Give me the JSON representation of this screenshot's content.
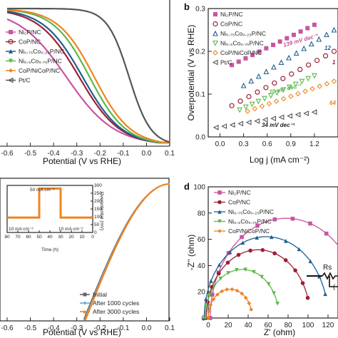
{
  "colors": {
    "Ni2P/NC": "#c8559f",
    "CoP/NC": "#9e1f35",
    "Ni0.75Co0.25P/NC": "#1e5f91",
    "Ni0.5Co0.75P/NC": "#5cb84a",
    "CoP/NiCoP/NC": "#ef8420",
    "Pt/C": "#555555",
    "Initial": "#666666",
    "After 1000 cycles": "#6fa8d4",
    "After 3000 cycles": "#ef8420"
  },
  "chart_data": [
    {
      "id": "a",
      "type": "line",
      "xlabel": "Potential (V vs RHE)",
      "xlim": [
        -0.6,
        0.1
      ],
      "xticks": [
        "-0.6",
        "-0.5",
        "-0.4",
        "-0.3",
        "-0.2",
        "-0.1",
        "0.0",
        "0.1"
      ],
      "legend": "top-left",
      "series": [
        {
          "name": "Ni2P/NC",
          "onset": -0.18,
          "half": -0.345
        },
        {
          "name": "CoP/NC",
          "onset": -0.15,
          "half": -0.29
        },
        {
          "name": "Ni0.75Co0.25P/NC",
          "onset": -0.14,
          "half": -0.275
        },
        {
          "name": "Ni0.5Co0.75P/NC",
          "onset": -0.12,
          "half": -0.245
        },
        {
          "name": "CoP/NiCoP/NC",
          "onset": -0.1,
          "half": -0.225
        },
        {
          "name": "Pt/C",
          "onset": 0.0,
          "half": -0.075
        }
      ]
    },
    {
      "id": "b",
      "type": "line",
      "xlabel": "Log j (mA cm⁻²)",
      "ylabel": "Overpotential (V vs RHE)",
      "xlim": [
        -0.15,
        1.5
      ],
      "ylim": [
        0.0,
        0.3
      ],
      "xticks": [
        "0.0",
        "0.3",
        "0.6",
        "0.9",
        "1.2"
      ],
      "yticks": [
        "0.0",
        "0.1",
        "0.2",
        "0.3"
      ],
      "legend": "top-left",
      "series": [
        {
          "name": "Ni2P/NC",
          "x": [
            0.15,
            1.2
          ],
          "y": [
            0.168,
            0.262
          ],
          "slope_label": "139 mV dec⁻¹"
        },
        {
          "name": "CoP/NC",
          "x": [
            0.15,
            1.45
          ],
          "y": [
            0.073,
            0.2
          ],
          "slope_label": "1"
        },
        {
          "name": "Ni0.75Co0.25P/NC",
          "x": [
            0.3,
            1.45
          ],
          "y": [
            0.12,
            0.25
          ],
          "slope_label": "12"
        },
        {
          "name": "Ni0.5Co0.75P/NC",
          "x": [
            0.25,
            1.2
          ],
          "y": [
            0.063,
            0.143
          ],
          "slope_label": "70 mV dec⁻¹"
        },
        {
          "name": "CoP/NiCoP/NC",
          "x": [
            0.35,
            1.45
          ],
          "y": [
            0.06,
            0.13
          ],
          "slope_label": "64"
        },
        {
          "name": "Pt/C",
          "x": [
            -0.05,
            1.2
          ],
          "y": [
            0.022,
            0.058
          ],
          "slope_label": "34 mV dec⁻¹"
        }
      ]
    },
    {
      "id": "c",
      "type": "line",
      "xlabel": "Potential (V vs RHE)",
      "xlim": [
        -0.6,
        0.1
      ],
      "xticks": [
        "-0.6",
        "-0.5",
        "-0.4",
        "-0.3",
        "-0.2",
        "-0.1",
        "0.0",
        "0.1"
      ],
      "legend": "bottom-right",
      "series": [
        {
          "name": "Initial"
        },
        {
          "name": "After 1000 cycles"
        },
        {
          "name": "After 3000 cycles"
        }
      ],
      "inset": {
        "xlabel": "Time (h)",
        "ylabel": "Overpotential (mV)",
        "xticks": [
          "80",
          "70",
          "60",
          "50",
          "40",
          "30",
          "20",
          "10",
          "0"
        ],
        "yticks": [
          "0",
          "50",
          "100",
          "150",
          "200",
          "250",
          "300"
        ],
        "labels": [
          "50 mA cm⁻²",
          "10 mA cm⁻²",
          "10 mA cm⁻²"
        ],
        "segments": [
          {
            "t0": 80,
            "t1": 50,
            "eta": 95
          },
          {
            "t0": 50,
            "t1": 30,
            "eta": 280
          },
          {
            "t0": 30,
            "t1": 0,
            "eta": 95
          }
        ]
      }
    },
    {
      "id": "d",
      "type": "scatter",
      "xlabel": "Z' (ohm)",
      "ylabel": "-Z'' (ohm)",
      "xlim": [
        0,
        130
      ],
      "ylim": [
        0,
        100
      ],
      "xticks": [
        "0",
        "20",
        "40",
        "60",
        "80",
        "100",
        "120"
      ],
      "yticks": [
        "0",
        "20",
        "40",
        "60",
        "80",
        "100"
      ],
      "legend": "top-left",
      "circuit_label": "Rs",
      "series": [
        {
          "name": "Ni2P/NC",
          "cx": 78,
          "r": 76
        },
        {
          "name": "Ni0.75Co0.25P/NC",
          "cx": 58,
          "r": 62
        },
        {
          "name": "CoP/NC",
          "cx": 50,
          "r": 52
        },
        {
          "name": "Ni0.5Co0.75P/NC",
          "cx": 34,
          "r": 37
        },
        {
          "name": "CoP/NiCoP/NC",
          "cx": 22,
          "r": 22
        }
      ]
    }
  ],
  "panels": {
    "a": {
      "legend": [
        "Ni₂P/NC",
        "CoP/NC",
        "Ni₀.₇₅Co₀.₂₅P/NC",
        "Ni₀.₅Co₀.₇₅P/NC",
        "CoP/NiCoP/NC",
        "Pt/C"
      ]
    },
    "b": {
      "letter": "b",
      "legend": [
        "Ni₂P/NC",
        "CoP/NC",
        "Ni₀.₇₅Co₀.₂₅P/NC",
        "Ni₀.₅Co₀.₇₅P/NC",
        "CoP/NiCoP/NC",
        "Pt/C"
      ],
      "ann": [
        "139 mV dec⁻¹",
        "12",
        "1",
        "70 mV dec⁻¹",
        "64",
        "34 mV dec⁻¹"
      ]
    },
    "c": {
      "legend": [
        "Initial",
        "After 1000 cycles",
        "After 3000 cycles"
      ]
    },
    "d": {
      "letter": "d",
      "legend": [
        "Ni₂P/NC",
        "CoP/NC",
        "Ni₀.₇₅Co₀.₂₅P/NC",
        "Ni₀.₅Co₀.₇₅P/NC",
        "CoP/NiCoP/NC"
      ],
      "circuit": "Rs",
      "circuit_tail": "("
    }
  }
}
